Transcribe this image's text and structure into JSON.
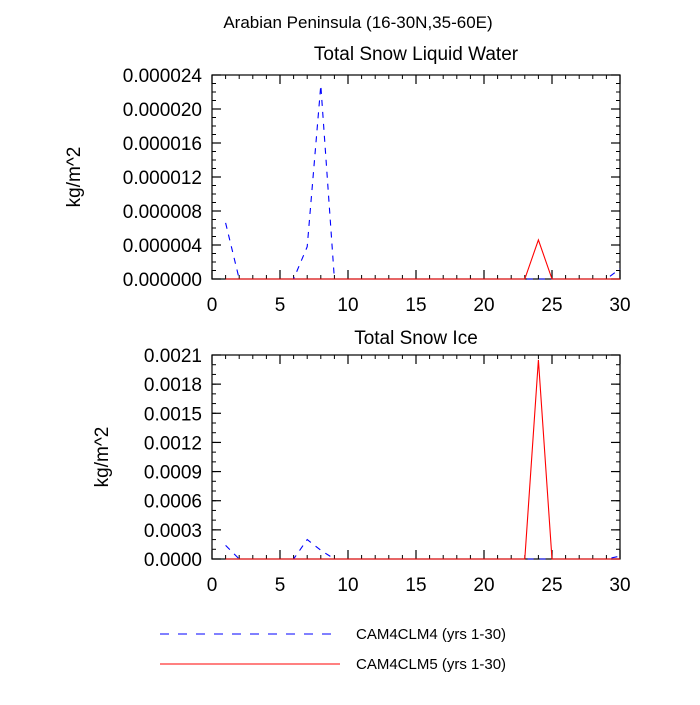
{
  "page_title": "Arabian Peninsula (16-30N,35-60E)",
  "colors": {
    "CAM4CLM4": "#0000ff",
    "CAM4CLM5": "#ff0000"
  },
  "chart_data": [
    {
      "type": "line",
      "title": "Total Snow Liquid Water",
      "xlabel": "",
      "ylabel": "kg/m^2",
      "xlim": [
        0,
        30
      ],
      "ylim": [
        0,
        2.4e-05
      ],
      "x_ticks": [
        0,
        5,
        10,
        15,
        20,
        25,
        30
      ],
      "y_ticks": [
        0,
        4e-06,
        8e-06,
        1.2e-05,
        1.6e-05,
        2e-05,
        2.4e-05
      ],
      "x_tick_labels": [
        "0",
        "5",
        "10",
        "15",
        "20",
        "25",
        "30"
      ],
      "y_tick_labels": [
        "0.000000",
        "0.000004",
        "0.000008",
        "0.000012",
        "0.000016",
        "0.000020",
        "0.000024"
      ],
      "x_minor_step": 1,
      "y_minor_step": 1e-06,
      "grid": false,
      "series": [
        {
          "name": "CAM4CLM4 (yrs 1-30)",
          "style": "dashed",
          "x": [
            1,
            2,
            3,
            4,
            5,
            6,
            7,
            8,
            9,
            10,
            11,
            12,
            13,
            14,
            15,
            16,
            17,
            18,
            19,
            20,
            21,
            22,
            23,
            24,
            25,
            26,
            27,
            28,
            29,
            30
          ],
          "y": [
            6.6e-06,
            0,
            0,
            0,
            0,
            0,
            3.8e-06,
            2.28e-05,
            0,
            0,
            0,
            0,
            0,
            0,
            0,
            0,
            0,
            0,
            0,
            0,
            0,
            0,
            0,
            0,
            0,
            0,
            0,
            0,
            0,
            1.2e-06
          ]
        },
        {
          "name": "CAM4CLM5 (yrs 1-30)",
          "style": "solid",
          "x": [
            1,
            2,
            3,
            4,
            5,
            6,
            7,
            8,
            9,
            10,
            11,
            12,
            13,
            14,
            15,
            16,
            17,
            18,
            19,
            20,
            21,
            22,
            23,
            24,
            25,
            26,
            27,
            28,
            29,
            30
          ],
          "y": [
            0,
            0,
            0,
            0,
            0,
            0,
            0,
            0,
            0,
            0,
            0,
            0,
            0,
            0,
            0,
            0,
            0,
            0,
            0,
            0,
            0,
            0,
            0,
            4.6e-06,
            0,
            0,
            0,
            0,
            0,
            0
          ]
        }
      ]
    },
    {
      "type": "line",
      "title": "Total Snow Ice",
      "xlabel": "",
      "ylabel": "kg/m^2",
      "xlim": [
        0,
        30
      ],
      "ylim": [
        0,
        0.0021
      ],
      "x_ticks": [
        0,
        5,
        10,
        15,
        20,
        25,
        30
      ],
      "y_ticks": [
        0,
        0.0003,
        0.0006,
        0.0009,
        0.0012,
        0.0015,
        0.0018,
        0.0021
      ],
      "x_tick_labels": [
        "0",
        "5",
        "10",
        "15",
        "20",
        "25",
        "30"
      ],
      "y_tick_labels": [
        "0.0000",
        "0.0003",
        "0.0006",
        "0.0009",
        "0.0012",
        "0.0015",
        "0.0018",
        "0.0021"
      ],
      "x_minor_step": 1,
      "y_minor_step": 0.0001,
      "grid": false,
      "series": [
        {
          "name": "CAM4CLM4 (yrs 1-30)",
          "style": "dashed",
          "x": [
            1,
            2,
            3,
            4,
            5,
            6,
            7,
            8,
            9,
            10,
            11,
            12,
            13,
            14,
            15,
            16,
            17,
            18,
            19,
            20,
            21,
            22,
            23,
            24,
            25,
            26,
            27,
            28,
            29,
            30
          ],
          "y": [
            0.00014,
            0,
            0,
            0,
            0,
            0,
            0.0002,
            9e-05,
            0,
            0,
            0,
            0,
            0,
            0,
            0,
            0,
            0,
            0,
            0,
            0,
            0,
            0,
            0,
            0,
            0,
            0,
            0,
            0,
            0,
            3e-05
          ]
        },
        {
          "name": "CAM4CLM5 (yrs 1-30)",
          "style": "solid",
          "x": [
            1,
            2,
            3,
            4,
            5,
            6,
            7,
            8,
            9,
            10,
            11,
            12,
            13,
            14,
            15,
            16,
            17,
            18,
            19,
            20,
            21,
            22,
            23,
            24,
            25,
            26,
            27,
            28,
            29,
            30
          ],
          "y": [
            0,
            0,
            0,
            0,
            0,
            0,
            0,
            0,
            0,
            0,
            0,
            0,
            0,
            0,
            0,
            0,
            0,
            0,
            0,
            0,
            0,
            0,
            0,
            0.00205,
            0,
            0,
            0,
            0,
            0,
            0
          ]
        }
      ]
    }
  ],
  "legend": {
    "position": "bottom",
    "items": [
      {
        "label": "CAM4CLM4 (yrs 1-30)",
        "style": "dashed",
        "color": "#0000ff"
      },
      {
        "label": "CAM4CLM5 (yrs 1-30)",
        "style": "solid",
        "color": "#ff0000"
      }
    ]
  }
}
